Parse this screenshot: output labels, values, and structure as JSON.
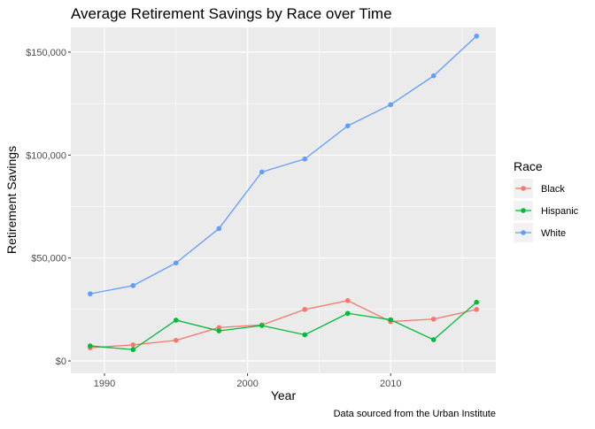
{
  "chart_data": {
    "type": "line",
    "title": "Average Retirement Savings by Race over Time",
    "xlabel": "Year",
    "ylabel": "Retirement Savings",
    "caption": "Data sourced from the Urban Institute",
    "x": [
      1989,
      1992,
      1995,
      1998,
      2001,
      2004,
      2007,
      2010,
      2013,
      2016
    ],
    "xlim": [
      1987.65,
      2017.35
    ],
    "ylim": [
      -6000,
      162000
    ],
    "x_ticks": [
      1990,
      2000,
      2010
    ],
    "x_tick_labels": [
      "1990",
      "2000",
      "2010"
    ],
    "y_ticks": [
      0,
      50000,
      100000,
      150000
    ],
    "y_tick_labels": [
      "$0",
      "$50,000",
      "$100,000",
      "$150,000"
    ],
    "grid": true,
    "legend": {
      "title": "Race",
      "position": "right"
    },
    "series": [
      {
        "name": "Black",
        "color": "#F8766D",
        "values": [
          6400,
          7800,
          10000,
          16200,
          17500,
          25000,
          29300,
          19100,
          20300,
          25000
        ]
      },
      {
        "name": "Hispanic",
        "color": "#00BA38",
        "values": [
          7300,
          5500,
          19800,
          14600,
          17200,
          12700,
          23100,
          20000,
          10300,
          28500
        ]
      },
      {
        "name": "White",
        "color": "#619CFF",
        "values": [
          32600,
          36600,
          47600,
          64300,
          91800,
          98100,
          114200,
          124500,
          138500,
          157800
        ]
      }
    ]
  }
}
